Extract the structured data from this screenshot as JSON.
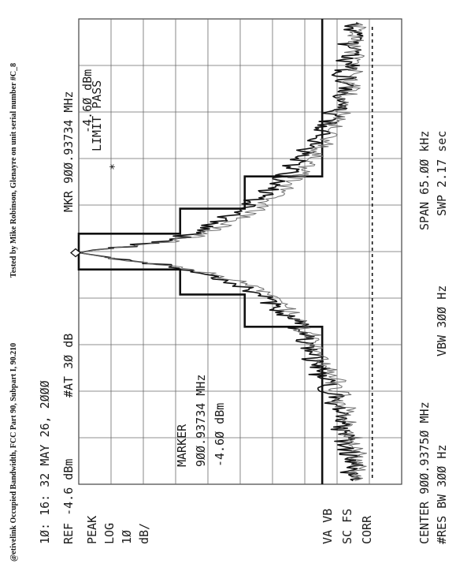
{
  "captions": {
    "left": "@etivelink Occupied Bandwidth, FCC Part 90, Subpart I, 90.210",
    "right": "Tested by Mike Robinson, Glenayre on unit serial number #C_8"
  },
  "header": {
    "time": "1Ø: 16: 32  MAY 26, 2ØØØ",
    "ref": "REF -4.6 dBm",
    "atten": "#AT 3Ø dB",
    "mkr": "MKR 9ØØ.93734 MHz",
    "mkr_level": "-4.6Ø dBm"
  },
  "left_labels": {
    "peak": "PEAK",
    "log": "LOG",
    "scale_val": "1Ø",
    "scale_unit": "dB/",
    "va_vb": "VA VB",
    "sc_fs": "SC FS",
    "corr": "CORR"
  },
  "marker_box": {
    "title": "MARKER",
    "freq": "9ØØ.93734 MHz",
    "level": "-4.6Ø dBm"
  },
  "limit": {
    "text": "LIMIT PASS",
    "star": "*"
  },
  "footer": {
    "center": "CENTER 9ØØ.9375Ø MHz",
    "span": "SPAN 65.ØØ kHz",
    "res_bw": "#RES BW 3ØØ Hz",
    "vbw": "VBW 3ØØ Hz",
    "swp": "SWP 2.17 sec"
  },
  "colors": {
    "trace_primary": "#111111",
    "trace_secondary": "#6f6f6f",
    "grid": "#6a6a6a",
    "mask": "#111111"
  },
  "chart_data": {
    "type": "line",
    "x_unit": "kHz offset from center",
    "y_unit": "dBm",
    "xlim": [
      -32.5,
      32.5
    ],
    "ylim": [
      -104.6,
      -4.6
    ],
    "grid": true,
    "marker": {
      "x": -0.16,
      "y": -4.6
    },
    "mask": {
      "x": [
        -32.5,
        -10.5,
        -10.5,
        -6.0,
        -6.0,
        -2.5,
        -2.5,
        2.5,
        2.5,
        6.0,
        6.0,
        10.5,
        10.5,
        32.5
      ],
      "y": [
        -80.0,
        -80.0,
        -56.0,
        -56.0,
        -36.0,
        -36.0,
        -4.6,
        -4.6,
        -36.0,
        -36.0,
        -56.0,
        -56.0,
        -80.0,
        -80.0
      ]
    },
    "reference_line": {
      "y": -95.5
    },
    "series": [
      {
        "values": [
          [
            -32.0,
            -89.5
          ],
          [
            -31.0,
            -88.0
          ],
          [
            -30.0,
            -90.0
          ],
          [
            -29.0,
            -87.5
          ],
          [
            -28.0,
            -89.0
          ],
          [
            -27.0,
            -86.0
          ],
          [
            -26.0,
            -88.5
          ],
          [
            -25.0,
            -85.5
          ],
          [
            -24.0,
            -87.0
          ],
          [
            -23.0,
            -84.0
          ],
          [
            -22.0,
            -86.5
          ],
          [
            -21.0,
            -82.5
          ],
          [
            -20.0,
            -84.5
          ],
          [
            -19.0,
            -80.5
          ],
          [
            -18.0,
            -82.0
          ],
          [
            -17.0,
            -78.5
          ],
          [
            -16.0,
            -80.0
          ],
          [
            -15.0,
            -76.5
          ],
          [
            -14.0,
            -78.0
          ],
          [
            -13.0,
            -73.5
          ],
          [
            -12.0,
            -75.0
          ],
          [
            -11.0,
            -71.0
          ],
          [
            -10.0,
            -72.5
          ],
          [
            -9.0,
            -68.0
          ],
          [
            -8.0,
            -66.5
          ],
          [
            -7.0,
            -63.0
          ],
          [
            -6.0,
            -60.5
          ],
          [
            -5.0,
            -56.0
          ],
          [
            -4.0,
            -50.5
          ],
          [
            -3.0,
            -44.0
          ],
          [
            -2.0,
            -33.0
          ],
          [
            -1.0,
            -17.0
          ],
          [
            -0.5,
            -9.5
          ],
          [
            -0.16,
            -4.6
          ],
          [
            0.2,
            -9.0
          ],
          [
            0.6,
            -18.0
          ],
          [
            1.2,
            -27.0
          ],
          [
            2.0,
            -36.0
          ],
          [
            3.0,
            -42.5
          ],
          [
            4.0,
            -47.0
          ],
          [
            5.0,
            -51.0
          ],
          [
            6.0,
            -54.5
          ],
          [
            7.0,
            -58.0
          ],
          [
            8.0,
            -61.5
          ],
          [
            9.0,
            -64.0
          ],
          [
            10.0,
            -67.0
          ],
          [
            11.0,
            -69.5
          ],
          [
            12.0,
            -71.0
          ],
          [
            13.0,
            -73.5
          ],
          [
            14.0,
            -75.0
          ],
          [
            15.0,
            -77.0
          ],
          [
            16.0,
            -78.5
          ],
          [
            17.0,
            -80.5
          ],
          [
            18.0,
            -81.5
          ],
          [
            19.0,
            -83.0
          ],
          [
            20.0,
            -84.5
          ],
          [
            21.0,
            -85.5
          ],
          [
            22.0,
            -84.0
          ],
          [
            23.0,
            -86.5
          ],
          [
            24.0,
            -87.5
          ],
          [
            25.0,
            -86.0
          ],
          [
            26.0,
            -88.5
          ],
          [
            27.0,
            -87.0
          ],
          [
            28.0,
            -89.0
          ],
          [
            29.0,
            -88.0
          ],
          [
            30.0,
            -90.0
          ],
          [
            31.0,
            -89.0
          ],
          [
            32.0,
            -90.5
          ]
        ]
      },
      {
        "values": [
          [
            -32.0,
            -91.5
          ],
          [
            -31.0,
            -90.0
          ],
          [
            -30.0,
            -92.0
          ],
          [
            -29.0,
            -89.5
          ],
          [
            -28.0,
            -91.0
          ],
          [
            -27.0,
            -88.5
          ],
          [
            -26.0,
            -90.0
          ],
          [
            -25.0,
            -87.0
          ],
          [
            -24.0,
            -89.0
          ],
          [
            -23.0,
            -86.0
          ],
          [
            -22.0,
            -88.0
          ],
          [
            -21.0,
            -84.5
          ],
          [
            -20.0,
            -86.5
          ],
          [
            -19.0,
            -83.0
          ],
          [
            -18.0,
            -84.5
          ],
          [
            -17.0,
            -81.0
          ],
          [
            -16.0,
            -82.5
          ],
          [
            -15.0,
            -79.0
          ],
          [
            -14.0,
            -80.5
          ],
          [
            -13.0,
            -76.5
          ],
          [
            -12.0,
            -78.0
          ],
          [
            -11.0,
            -74.0
          ],
          [
            -10.0,
            -75.5
          ],
          [
            -9.0,
            -71.0
          ],
          [
            -8.0,
            -69.5
          ],
          [
            -7.0,
            -66.0
          ],
          [
            -6.0,
            -63.0
          ],
          [
            -5.0,
            -58.5
          ],
          [
            -4.0,
            -53.0
          ],
          [
            -3.0,
            -45.0
          ],
          [
            -2.0,
            -32.0
          ],
          [
            -1.0,
            -16.0
          ],
          [
            -0.5,
            -9.0
          ],
          [
            -0.16,
            -4.6
          ],
          [
            0.2,
            -9.5
          ],
          [
            0.6,
            -18.5
          ],
          [
            1.2,
            -30.0
          ],
          [
            2.0,
            -40.0
          ],
          [
            3.0,
            -46.0
          ],
          [
            4.0,
            -51.5
          ],
          [
            5.0,
            -56.0
          ],
          [
            6.0,
            -60.0
          ],
          [
            7.0,
            -63.0
          ],
          [
            8.0,
            -66.0
          ],
          [
            9.0,
            -68.5
          ],
          [
            10.0,
            -71.5
          ],
          [
            11.0,
            -73.5
          ],
          [
            12.0,
            -75.5
          ],
          [
            13.0,
            -77.5
          ],
          [
            14.0,
            -79.0
          ],
          [
            15.0,
            -80.5
          ],
          [
            16.0,
            -82.0
          ],
          [
            17.0,
            -83.5
          ],
          [
            18.0,
            -84.5
          ],
          [
            19.0,
            -86.0
          ],
          [
            20.0,
            -87.0
          ],
          [
            21.0,
            -86.0
          ],
          [
            22.0,
            -88.0
          ],
          [
            23.0,
            -89.0
          ],
          [
            24.0,
            -88.5
          ],
          [
            25.0,
            -90.0
          ],
          [
            26.0,
            -89.0
          ],
          [
            27.0,
            -90.5
          ],
          [
            28.0,
            -89.5
          ],
          [
            29.0,
            -91.0
          ],
          [
            30.0,
            -90.0
          ],
          [
            31.0,
            -91.5
          ],
          [
            32.0,
            -90.5
          ]
        ]
      }
    ]
  }
}
